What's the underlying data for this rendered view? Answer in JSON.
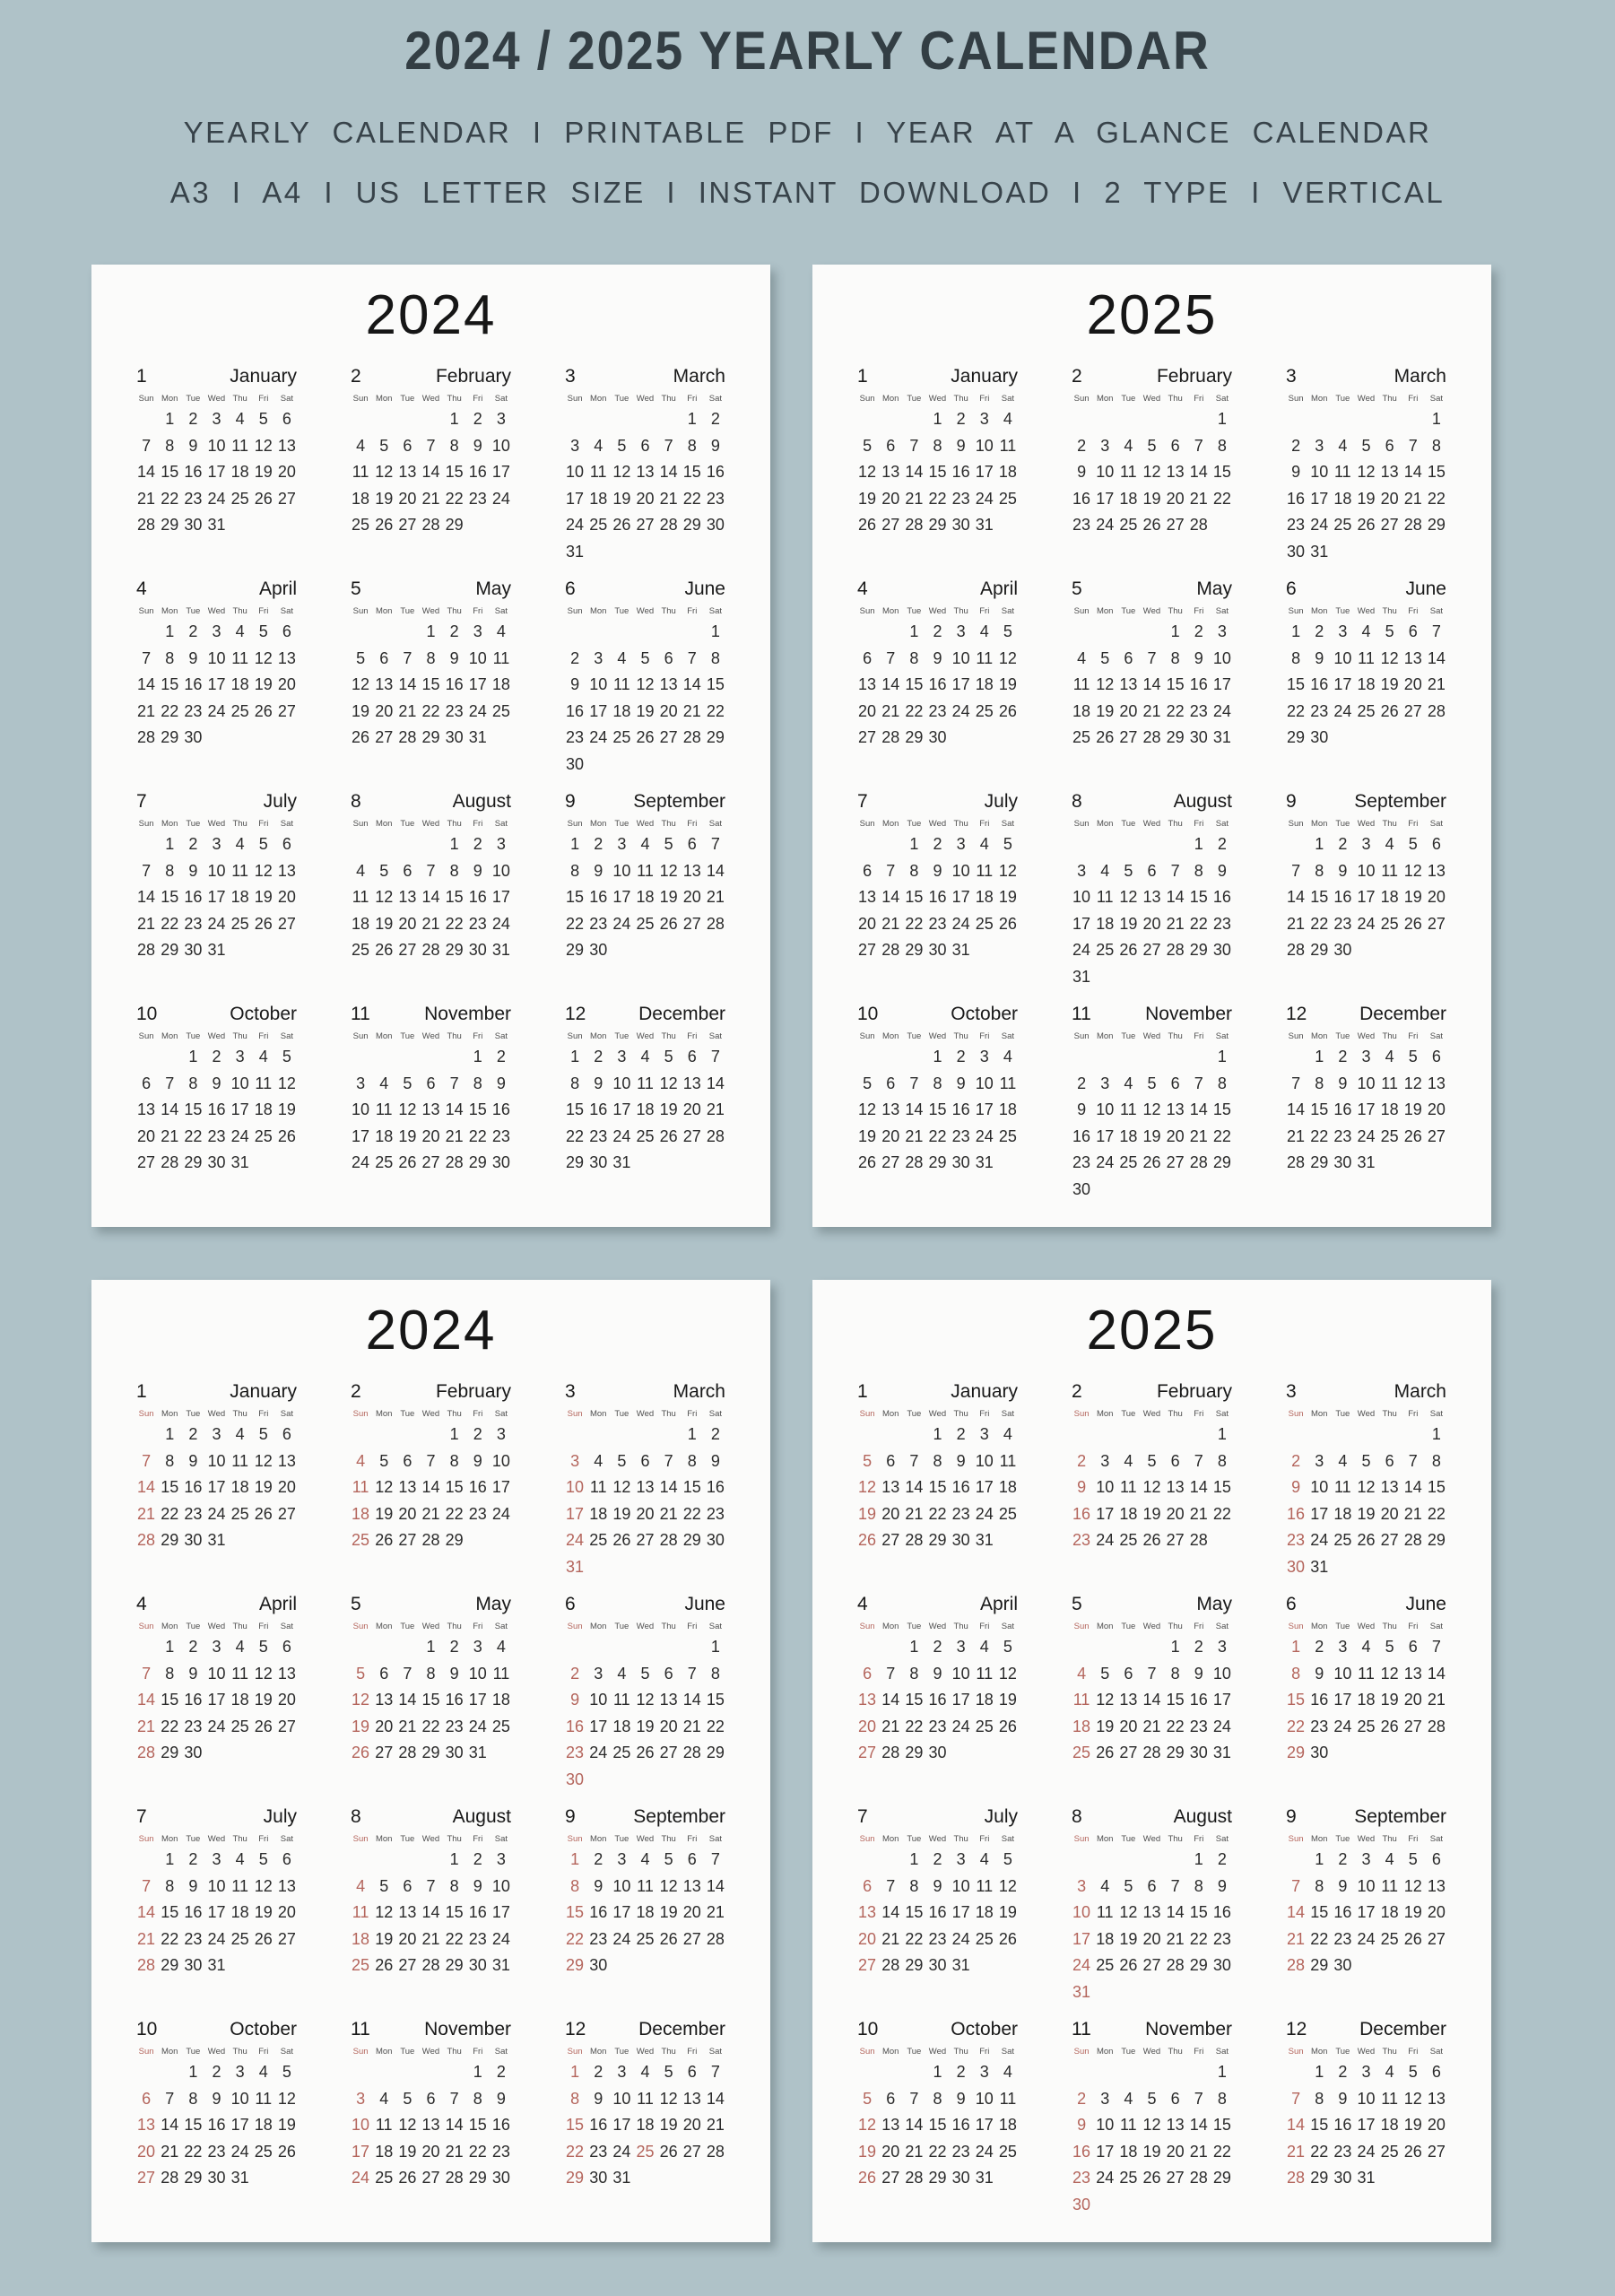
{
  "header": {
    "title": "2024 / 2025 YEARLY CALENDAR",
    "subtitle_line1": "YEARLY CALENDAR I PRINTABLE PDF I YEAR AT A GLANCE CALENDAR",
    "subtitle_line2": "A3 I A4 I US LETTER SIZE I INSTANT DOWNLOAD I 2 TYPE I VERTICAL"
  },
  "colors": {
    "background": "#afc2c8",
    "page": "#fbfbfa",
    "title_text": "#333e44",
    "subtitle_text": "#38434a",
    "date_text": "#2b2b2b",
    "weekday_text": "#4f4f4f",
    "sunday_accent": "#b4655c"
  },
  "weekdays": [
    "Sun",
    "Mon",
    "Tue",
    "Wed",
    "Thu",
    "Fri",
    "Sat"
  ],
  "years": {
    "y2024": {
      "label": "2024",
      "months": [
        {
          "n": "1",
          "name": "January",
          "start": 1,
          "days": 31
        },
        {
          "n": "2",
          "name": "February",
          "start": 4,
          "days": 29
        },
        {
          "n": "3",
          "name": "March",
          "start": 5,
          "days": 31
        },
        {
          "n": "4",
          "name": "April",
          "start": 1,
          "days": 30
        },
        {
          "n": "5",
          "name": "May",
          "start": 3,
          "days": 31
        },
        {
          "n": "6",
          "name": "June",
          "start": 6,
          "days": 30
        },
        {
          "n": "7",
          "name": "July",
          "start": 1,
          "days": 31
        },
        {
          "n": "8",
          "name": "August",
          "start": 4,
          "days": 31
        },
        {
          "n": "9",
          "name": "September",
          "start": 0,
          "days": 30
        },
        {
          "n": "10",
          "name": "October",
          "start": 2,
          "days": 31
        },
        {
          "n": "11",
          "name": "November",
          "start": 5,
          "days": 30
        },
        {
          "n": "12",
          "name": "December",
          "start": 0,
          "days": 31
        }
      ]
    },
    "y2025": {
      "label": "2025",
      "months": [
        {
          "n": "1",
          "name": "January",
          "start": 3,
          "days": 31
        },
        {
          "n": "2",
          "name": "February",
          "start": 6,
          "days": 28
        },
        {
          "n": "3",
          "name": "March",
          "start": 6,
          "days": 31
        },
        {
          "n": "4",
          "name": "April",
          "start": 2,
          "days": 30
        },
        {
          "n": "5",
          "name": "May",
          "start": 4,
          "days": 31
        },
        {
          "n": "6",
          "name": "June",
          "start": 0,
          "days": 30
        },
        {
          "n": "7",
          "name": "July",
          "start": 2,
          "days": 31
        },
        {
          "n": "8",
          "name": "August",
          "start": 5,
          "days": 31
        },
        {
          "n": "9",
          "name": "September",
          "start": 1,
          "days": 30
        },
        {
          "n": "10",
          "name": "October",
          "start": 3,
          "days": 31
        },
        {
          "n": "11",
          "name": "November",
          "start": 6,
          "days": 30
        },
        {
          "n": "12",
          "name": "December",
          "start": 1,
          "days": 31
        }
      ]
    }
  },
  "pages": [
    {
      "year": "y2024",
      "sunday_accent": false
    },
    {
      "year": "y2025",
      "sunday_accent": false
    },
    {
      "year": "y2024",
      "sunday_accent": true,
      "extra_red": {
        "12": [
          25
        ]
      }
    },
    {
      "year": "y2025",
      "sunday_accent": true
    }
  ]
}
